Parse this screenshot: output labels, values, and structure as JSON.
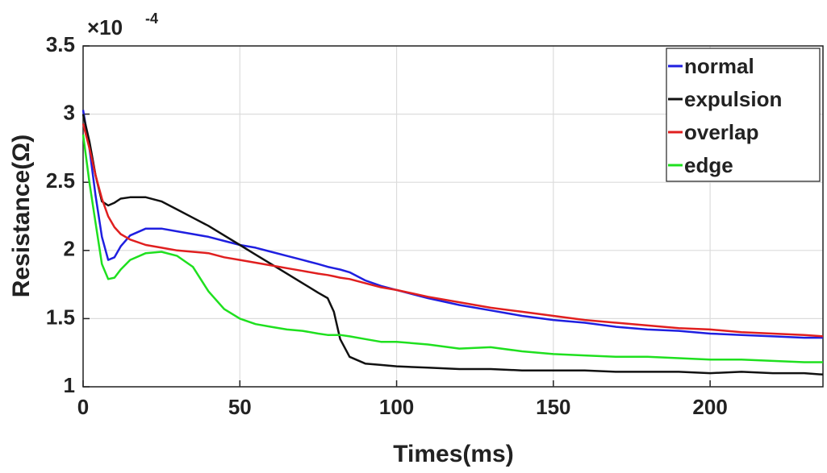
{
  "chart_data": {
    "type": "line",
    "x_label": "Times(ms)",
    "y_label": "Resistance(Ω)",
    "y_multiplier": {
      "base": "×10",
      "exponent": "-4"
    },
    "xlim": [
      0,
      236
    ],
    "xticks": [
      0,
      50,
      100,
      150,
      200
    ],
    "ylim": [
      1,
      3.5
    ],
    "yticks": [
      1,
      1.5,
      2,
      2.5,
      3,
      3.5
    ],
    "grid": true,
    "legend": "northeast",
    "x": [
      0,
      2,
      4,
      6,
      8,
      10,
      12,
      15,
      20,
      25,
      30,
      35,
      40,
      45,
      50,
      55,
      60,
      65,
      70,
      75,
      78,
      80,
      82,
      85,
      90,
      95,
      100,
      110,
      120,
      130,
      140,
      150,
      160,
      170,
      180,
      190,
      200,
      210,
      220,
      230,
      236
    ],
    "series": [
      {
        "name": "normal",
        "color": "#1f1fe0",
        "values": [
          3.03,
          2.75,
          2.4,
          2.1,
          1.93,
          1.95,
          2.03,
          2.11,
          2.16,
          2.16,
          2.14,
          2.12,
          2.1,
          2.07,
          2.04,
          2.02,
          1.99,
          1.96,
          1.93,
          1.9,
          1.88,
          1.87,
          1.86,
          1.84,
          1.78,
          1.74,
          1.71,
          1.65,
          1.6,
          1.56,
          1.52,
          1.49,
          1.47,
          1.44,
          1.42,
          1.41,
          1.39,
          1.38,
          1.37,
          1.36,
          1.36
        ]
      },
      {
        "name": "expulsion",
        "color": "#111111",
        "values": [
          3.0,
          2.8,
          2.55,
          2.36,
          2.33,
          2.35,
          2.38,
          2.39,
          2.39,
          2.36,
          2.3,
          2.24,
          2.18,
          2.11,
          2.04,
          1.97,
          1.9,
          1.83,
          1.76,
          1.69,
          1.65,
          1.55,
          1.35,
          1.22,
          1.17,
          1.16,
          1.15,
          1.14,
          1.13,
          1.13,
          1.12,
          1.12,
          1.12,
          1.11,
          1.11,
          1.11,
          1.1,
          1.11,
          1.1,
          1.1,
          1.09
        ]
      },
      {
        "name": "overlap",
        "color": "#e01f1f",
        "values": [
          2.93,
          2.75,
          2.55,
          2.38,
          2.25,
          2.17,
          2.12,
          2.08,
          2.04,
          2.02,
          2.0,
          1.99,
          1.98,
          1.95,
          1.93,
          1.91,
          1.89,
          1.87,
          1.85,
          1.83,
          1.82,
          1.81,
          1.8,
          1.79,
          1.76,
          1.73,
          1.71,
          1.66,
          1.62,
          1.58,
          1.55,
          1.52,
          1.49,
          1.47,
          1.45,
          1.43,
          1.42,
          1.4,
          1.39,
          1.38,
          1.37
        ]
      },
      {
        "name": "edge",
        "color": "#1fe01f",
        "values": [
          2.85,
          2.5,
          2.2,
          1.9,
          1.79,
          1.8,
          1.86,
          1.93,
          1.98,
          1.99,
          1.96,
          1.88,
          1.7,
          1.57,
          1.5,
          1.46,
          1.44,
          1.42,
          1.41,
          1.39,
          1.38,
          1.38,
          1.38,
          1.37,
          1.35,
          1.33,
          1.33,
          1.31,
          1.28,
          1.29,
          1.26,
          1.24,
          1.23,
          1.22,
          1.22,
          1.21,
          1.2,
          1.2,
          1.19,
          1.18,
          1.18
        ]
      }
    ]
  }
}
